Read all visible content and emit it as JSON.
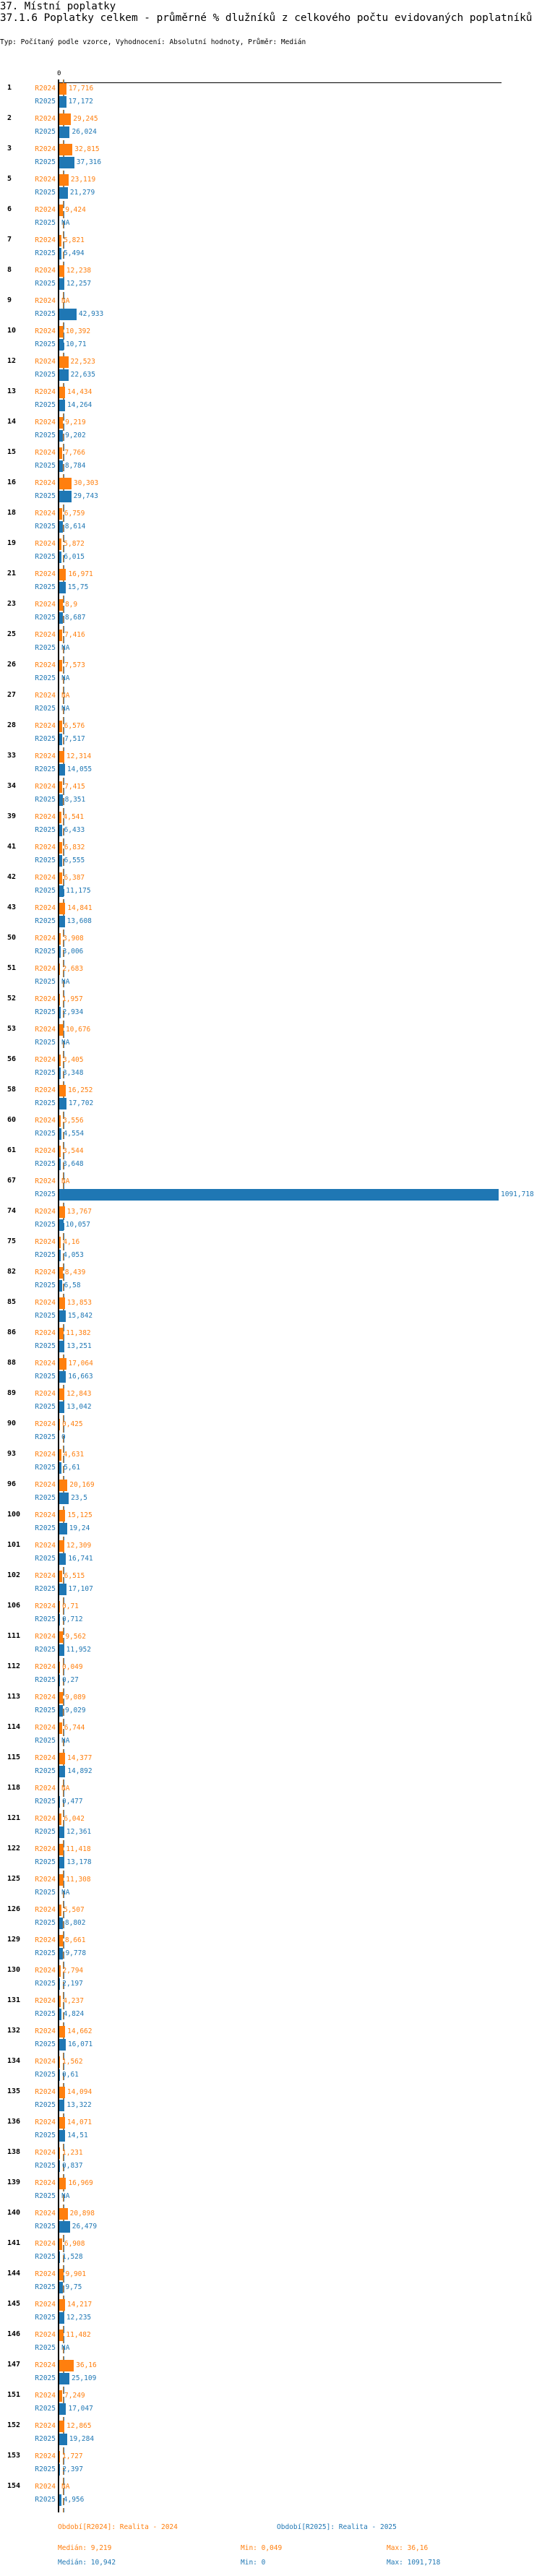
{
  "header": {
    "section_title": "37. Místní poplatky",
    "chart_title": "37.1.6 Poplatky celkem - průměrné % dlužníků z celkového počtu evidovaných poplatníků",
    "subtitle": "Typ: Počítaný podle vzorce, Vyhodnocení: Absolutní hodnoty, Průměr: Medián"
  },
  "colors": {
    "R2024": "#ff7f0e",
    "R2025": "#1f77b4"
  },
  "chart_data": {
    "type": "bar",
    "orientation": "horizontal",
    "title": "37.1.6 Poplatky celkem - průměrné % dlužníků z celkového počtu evidovaných poplatníků",
    "axis_zero_label": "0",
    "xlim": [
      0,
      1091.718
    ],
    "categories": [
      "1",
      "2",
      "3",
      "5",
      "6",
      "7",
      "8",
      "9",
      "10",
      "12",
      "13",
      "14",
      "15",
      "16",
      "18",
      "19",
      "21",
      "23",
      "25",
      "26",
      "27",
      "28",
      "33",
      "34",
      "39",
      "41",
      "42",
      "43",
      "50",
      "51",
      "52",
      "53",
      "56",
      "58",
      "60",
      "61",
      "67",
      "74",
      "75",
      "82",
      "85",
      "86",
      "88",
      "89",
      "90",
      "93",
      "96",
      "100",
      "101",
      "102",
      "106",
      "111",
      "112",
      "113",
      "114",
      "115",
      "118",
      "121",
      "122",
      "125",
      "126",
      "129",
      "130",
      "131",
      "132",
      "134",
      "135",
      "136",
      "138",
      "139",
      "140",
      "141",
      "144",
      "145",
      "146",
      "147",
      "151",
      "152",
      "153",
      "154"
    ],
    "series": [
      {
        "name": "R2024",
        "values": [
          "17,716",
          "29,245",
          "32,815",
          "23,119",
          "9,424",
          "5,821",
          "12,238",
          "NA",
          "10,392",
          "22,523",
          "14,434",
          "9,219",
          "7,766",
          "30,303",
          "6,759",
          "5,872",
          "16,971",
          "8,9",
          "7,416",
          "7,573",
          "NA",
          "6,576",
          "12,314",
          "7,415",
          "4,541",
          "6,832",
          "6,387",
          "14,841",
          "3,908",
          "2,683",
          "1,957",
          "10,676",
          "3,405",
          "16,252",
          "3,556",
          "3,544",
          "NA",
          "13,767",
          "4,16",
          "8,439",
          "13,853",
          "11,382",
          "17,064",
          "12,843",
          "0,425",
          "4,631",
          "20,169",
          "15,125",
          "12,309",
          "6,515",
          "0,71",
          "9,562",
          "0,049",
          "9,089",
          "6,744",
          "14,377",
          "NA",
          "6,042",
          "11,418",
          "11,308",
          "5,507",
          "8,661",
          "2,794",
          "4,237",
          "14,662",
          "1,562",
          "14,094",
          "14,071",
          "1,231",
          "16,969",
          "20,898",
          "6,908",
          "9,901",
          "14,217",
          "11,482",
          "36,16",
          "7,249",
          "12,865",
          "1,727",
          "NA"
        ]
      },
      {
        "name": "R2025",
        "values": [
          "17,172",
          "26,024",
          "37,316",
          "21,279",
          "NA",
          "5,494",
          "12,257",
          "42,933",
          "10,71",
          "22,635",
          "14,264",
          "9,202",
          "8,784",
          "29,743",
          "8,614",
          "6,015",
          "15,75",
          "8,687",
          "NA",
          "NA",
          "NA",
          "7,517",
          "14,055",
          "8,351",
          "6,433",
          "6,555",
          "11,175",
          "13,608",
          "3,006",
          "NA",
          "2,934",
          "NA",
          "3,348",
          "17,702",
          "4,554",
          "3,648",
          "1091,718",
          "10,057",
          "4,053",
          "6,58",
          "15,842",
          "13,251",
          "16,663",
          "13,042",
          "0",
          "5,61",
          "23,5",
          "19,24",
          "16,741",
          "17,107",
          "0,712",
          "11,952",
          "0,27",
          "9,029",
          "NA",
          "14,892",
          "0,477",
          "12,361",
          "13,178",
          "NA",
          "8,802",
          "9,778",
          "2,197",
          "4,824",
          "16,071",
          "0,61",
          "13,322",
          "14,51",
          "0,837",
          "NA",
          "26,479",
          "1,528",
          "9,75",
          "12,235",
          "NA",
          "25,109",
          "17,047",
          "19,284",
          "2,397",
          "4,956"
        ]
      }
    ],
    "medians": {
      "R2024": 9.219,
      "R2025": 10.942
    },
    "legend": [
      {
        "label": "Období[R2024]: Realita - 2024",
        "median": "Medián: 9,219",
        "min": "Min: 0,049",
        "max": "Max: 36,16"
      },
      {
        "label": "Období[R2025]: Realita - 2025",
        "median": "Medián: 10,942",
        "min": "Min: 0",
        "max": "Max: 1091,718"
      }
    ]
  }
}
